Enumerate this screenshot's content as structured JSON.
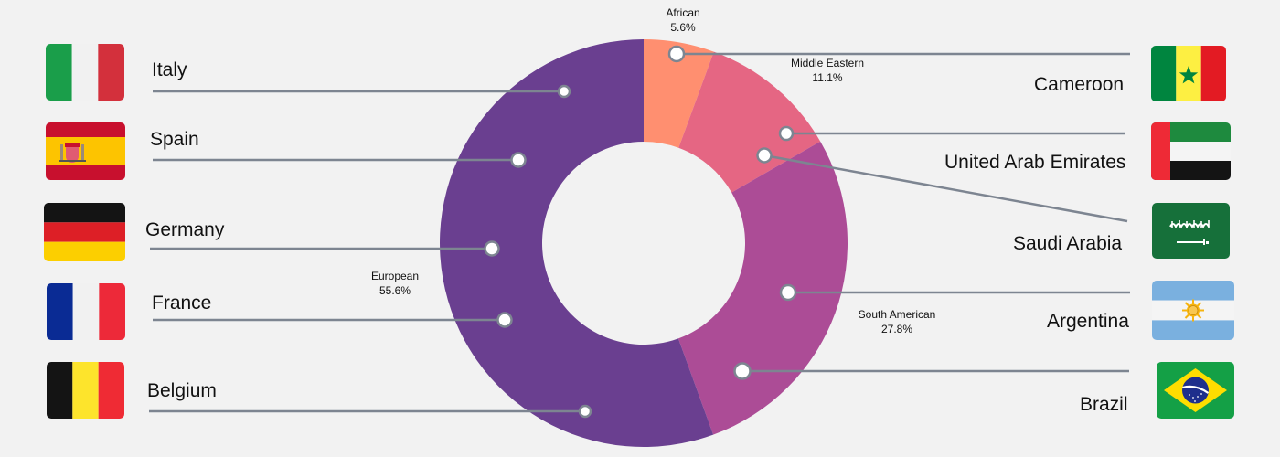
{
  "chart_data": {
    "type": "pie",
    "variant": "donut",
    "title": "",
    "categories": [
      "African",
      "Middle Eastern",
      "South American",
      "European"
    ],
    "series": [
      {
        "values": [
          5.6,
          11.1,
          27.8,
          55.6
        ]
      }
    ],
    "slice_labels": [
      {
        "name": "African",
        "pct": "5.6%"
      },
      {
        "name": "Middle Eastern",
        "pct": "11.1%"
      },
      {
        "name": "South American",
        "pct": "27.8%"
      },
      {
        "name": "European",
        "pct": "55.6%"
      }
    ],
    "colors": {
      "African": "#ff8f70",
      "Middle Eastern": "#e56683",
      "South American": "#ac4c96",
      "European": "#6a3f90"
    },
    "connector_color": "#7d8591",
    "countries": [
      {
        "name": "Italy",
        "region": "European",
        "side": "left",
        "flag": "italy"
      },
      {
        "name": "Spain",
        "region": "European",
        "side": "left",
        "flag": "spain"
      },
      {
        "name": "Germany",
        "region": "European",
        "side": "left",
        "flag": "germany"
      },
      {
        "name": "France",
        "region": "European",
        "side": "left",
        "flag": "france"
      },
      {
        "name": "Belgium",
        "region": "European",
        "side": "left",
        "flag": "belgium"
      },
      {
        "name": "Cameroon",
        "region": "African",
        "side": "right",
        "flag": "senegal"
      },
      {
        "name": "United Arab Emirates",
        "region": "Middle Eastern",
        "side": "right",
        "flag": "uae"
      },
      {
        "name": "Saudi Arabia",
        "region": "Middle Eastern",
        "side": "right",
        "flag": "saudi-arabia"
      },
      {
        "name": "Argentina",
        "region": "South American",
        "side": "right",
        "flag": "argentina"
      },
      {
        "name": "Brazil",
        "region": "South American",
        "side": "right",
        "flag": "brazil"
      }
    ]
  }
}
